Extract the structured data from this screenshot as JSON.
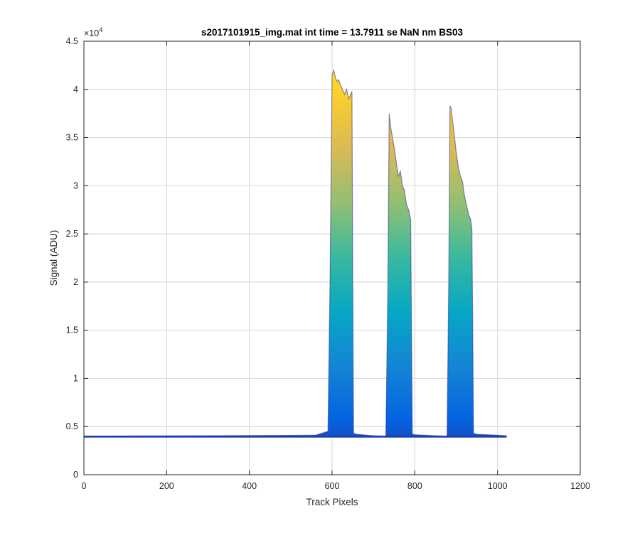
{
  "chart_data": {
    "type": "area",
    "title": "s2017101915_img.mat int time = 13.7911 se  NaN nm BS03",
    "xlabel": "Track Pixels",
    "ylabel": "Signal (ADU)",
    "xlim": [
      0,
      1200
    ],
    "ylim": [
      0,
      45000
    ],
    "x_ticks": [
      0,
      200,
      400,
      600,
      800,
      1000,
      1200
    ],
    "y_ticks": [
      0,
      5000,
      10000,
      15000,
      20000,
      25000,
      30000,
      35000,
      40000,
      45000
    ],
    "y_tick_labels": [
      "0",
      "0.5",
      "1",
      "1.5",
      "2",
      "2.5",
      "3",
      "3.5",
      "4",
      "4.5"
    ],
    "y_exponent_base": "×10",
    "y_exponent_power": "4",
    "grid": true,
    "colormap": "parula",
    "colormap_stops": [
      "#352a87",
      "#0363e1",
      "#1485d4",
      "#06a7c6",
      "#38b99e",
      "#92bf73",
      "#d9ba56",
      "#fcce2e",
      "#f9fb0e"
    ],
    "baseline_color": "#2c2f8e",
    "series": [
      {
        "x": [
          0,
          300,
          560,
          590,
          595,
          600,
          604,
          608,
          612,
          616,
          620,
          625,
          630,
          635,
          640,
          645,
          648,
          650,
          652,
          660,
          700,
          730,
          735,
          738,
          742,
          746,
          750,
          755,
          760,
          765,
          770,
          775,
          780,
          785,
          790,
          792,
          794,
          800,
          850,
          878,
          882,
          885,
          888,
          892,
          896,
          900,
          905,
          910,
          915,
          920,
          925,
          930,
          935,
          938,
          940,
          942,
          950,
          1000,
          1022
        ],
        "y": [
          4000,
          4050,
          4100,
          4500,
          20000,
          41500,
          42000,
          41200,
          40800,
          41000,
          40500,
          40000,
          39500,
          40000,
          39000,
          39500,
          39800,
          20000,
          4300,
          4200,
          4050,
          4000,
          20000,
          37500,
          36000,
          35000,
          34000,
          32500,
          31000,
          31500,
          30000,
          29500,
          28000,
          27500,
          26500,
          15000,
          4200,
          4150,
          4050,
          4000,
          20000,
          38300,
          38000,
          36500,
          35000,
          33500,
          32000,
          31000,
          30500,
          29000,
          28000,
          27000,
          26500,
          25500,
          15000,
          4300,
          4200,
          4100,
          4050
        ]
      }
    ]
  }
}
